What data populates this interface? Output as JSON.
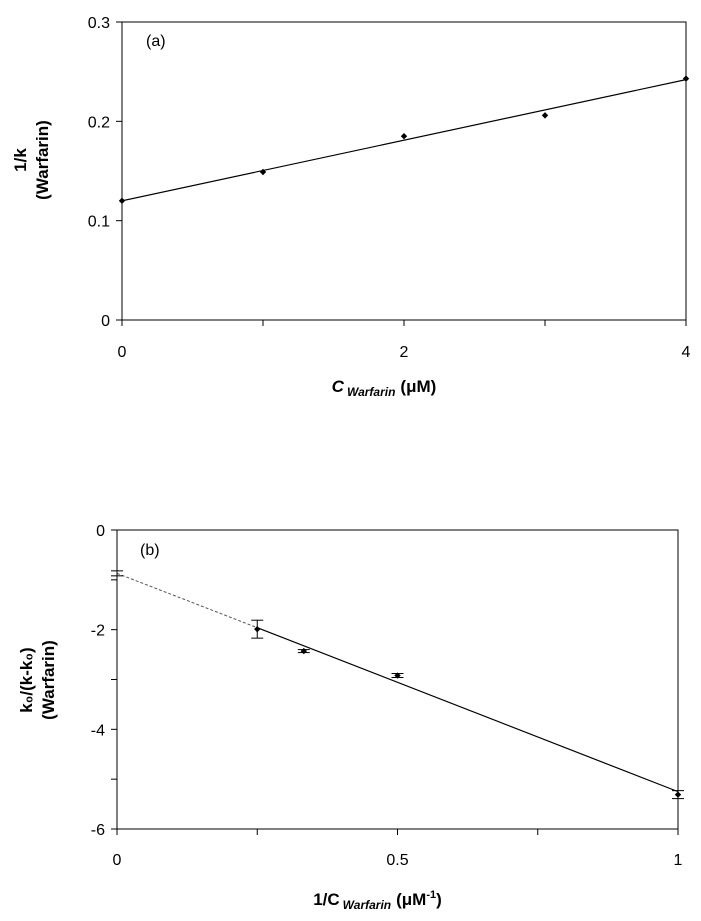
{
  "chart_data": [
    {
      "type": "scatter",
      "panel_label": "(a)",
      "ylabel_line1": "1/k",
      "ylabel_line2": "(Warfarin)",
      "xlabel_main": "C",
      "xlabel_sub": "Warfarin",
      "xlabel_unit": "(μM)",
      "xlim": [
        0,
        4
      ],
      "ylim": [
        0,
        0.3
      ],
      "xticks": [
        0,
        1,
        2,
        3,
        4
      ],
      "xtick_labels": [
        "0",
        "",
        "2",
        "",
        "4"
      ],
      "yticks": [
        0,
        0.1,
        0.2,
        0.3
      ],
      "ytick_labels": [
        "0",
        "0.1",
        "0.2",
        "0.3"
      ],
      "x": [
        0,
        1,
        2,
        3,
        4
      ],
      "y": [
        0.12,
        0.149,
        0.185,
        0.206,
        0.243
      ],
      "fit_line": {
        "x": [
          0,
          4
        ],
        "y": [
          0.12,
          0.242
        ]
      }
    },
    {
      "type": "scatter",
      "panel_label": "(b)",
      "ylabel_line1": "k₀/(k-k₀)",
      "ylabel_line2": "(Warfarin)",
      "xlabel_main": "1/C",
      "xlabel_sub": "Warfarin",
      "xlabel_unit_pre": "(μM",
      "xlabel_unit_sup": "-1",
      "xlabel_unit_post": ")",
      "xlim": [
        0,
        1
      ],
      "ylim": [
        -6,
        0
      ],
      "xticks": [
        0,
        0.25,
        0.5,
        0.75,
        1
      ],
      "xtick_labels": [
        "0",
        "",
        "0.5",
        "",
        "1"
      ],
      "yticks": [
        -6,
        -5,
        -4,
        -3,
        -2,
        -1,
        0
      ],
      "ytick_labels": [
        "-6",
        "",
        "-4",
        "",
        "-2",
        "",
        "0"
      ],
      "x": [
        0.25,
        0.333,
        0.5,
        1.0
      ],
      "y": [
        -1.99,
        -2.43,
        -2.92,
        -5.31
      ],
      "yerr": [
        0.18,
        0.03,
        0.04,
        0.08
      ],
      "intercept_point": {
        "x": 0,
        "y": -0.87,
        "yerr": 0.05
      },
      "fit_line": {
        "x": [
          0.25,
          1
        ],
        "y": [
          -1.96,
          -5.25
        ]
      },
      "extrapolation_line": {
        "x": [
          0,
          0.25
        ],
        "y": [
          -0.87,
          -1.96
        ],
        "style": "dashed"
      }
    }
  ]
}
